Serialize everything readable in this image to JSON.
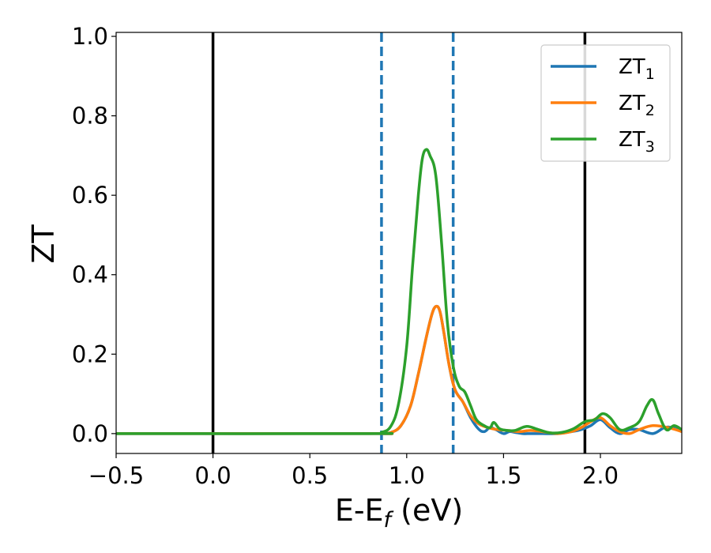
{
  "chart_data": {
    "type": "line",
    "xlabel": "E-E",
    "xlabel_subscript": "f",
    "xlabel_unit": " (eV)",
    "ylabel": "ZT",
    "xlim": [
      -0.5,
      2.42
    ],
    "ylim": [
      -0.05,
      1.01
    ],
    "xticks": [
      -0.5,
      0.0,
      0.5,
      1.0,
      1.5,
      2.0
    ],
    "xtick_labels": [
      "−0.5",
      "0.0",
      "0.5",
      "1.0",
      "1.5",
      "2.0"
    ],
    "yticks": [
      0.0,
      0.2,
      0.4,
      0.6,
      0.8,
      1.0
    ],
    "ytick_labels": [
      "0.0",
      "0.2",
      "0.4",
      "0.6",
      "0.8",
      "1.0"
    ],
    "grid": false,
    "legend_position": "top-right",
    "vlines": [
      {
        "x": 0.0,
        "style": "solid",
        "color": "#000000"
      },
      {
        "x": 1.92,
        "style": "solid",
        "color": "#000000"
      },
      {
        "x": 0.87,
        "style": "dashed",
        "color": "#1f77b4"
      },
      {
        "x": 1.24,
        "style": "dashed",
        "color": "#1f77b4"
      }
    ],
    "series": [
      {
        "name": "ZT",
        "name_subscript": "1",
        "color": "#1f77b4",
        "x": [
          -0.5,
          0.8,
          0.87,
          0.92,
          0.97,
          1.02,
          1.06,
          1.1,
          1.13,
          1.15,
          1.17,
          1.19,
          1.22,
          1.25,
          1.29,
          1.33,
          1.37,
          1.4,
          1.43,
          1.46,
          1.5,
          1.53,
          1.56,
          1.6,
          1.64,
          1.7,
          1.78,
          1.85,
          1.9,
          1.95,
          2.0,
          2.05,
          2.1,
          2.15,
          2.2,
          2.27,
          2.33,
          2.37,
          2.42
        ],
        "y": [
          0.0,
          0.0,
          0.0,
          0.003,
          0.02,
          0.07,
          0.15,
          0.24,
          0.3,
          0.32,
          0.31,
          0.26,
          0.17,
          0.11,
          0.08,
          0.04,
          0.012,
          0.005,
          0.015,
          0.01,
          0.0,
          0.005,
          0.003,
          0.0,
          0.0,
          0.0,
          0.0,
          0.005,
          0.01,
          0.02,
          0.035,
          0.015,
          0.0,
          0.01,
          0.01,
          0.0,
          0.015,
          0.015,
          0.005
        ]
      },
      {
        "name": "ZT",
        "name_subscript": "2",
        "color": "#ff7f0e",
        "x": [
          -0.5,
          0.8,
          0.87,
          0.92,
          0.97,
          1.02,
          1.06,
          1.1,
          1.13,
          1.15,
          1.17,
          1.19,
          1.22,
          1.25,
          1.29,
          1.33,
          1.37,
          1.42,
          1.47,
          1.52,
          1.58,
          1.64,
          1.7,
          1.78,
          1.85,
          1.9,
          1.95,
          2.0,
          2.05,
          2.1,
          2.15,
          2.2,
          2.27,
          2.35,
          2.42
        ],
        "y": [
          0.0,
          0.0,
          0.0,
          0.003,
          0.02,
          0.07,
          0.15,
          0.24,
          0.3,
          0.32,
          0.31,
          0.26,
          0.17,
          0.11,
          0.08,
          0.045,
          0.025,
          0.015,
          0.01,
          0.008,
          0.005,
          0.008,
          0.005,
          0.0,
          0.005,
          0.015,
          0.03,
          0.04,
          0.02,
          0.005,
          0.0,
          0.01,
          0.02,
          0.015,
          0.005
        ]
      },
      {
        "name": "ZT",
        "name_subscript": "3",
        "color": "#2ca02c",
        "x": [
          -0.5,
          0.8,
          0.87,
          0.92,
          0.96,
          1.0,
          1.03,
          1.06,
          1.08,
          1.1,
          1.12,
          1.15,
          1.18,
          1.21,
          1.24,
          1.27,
          1.3,
          1.33,
          1.36,
          1.4,
          1.43,
          1.45,
          1.48,
          1.52,
          1.56,
          1.62,
          1.68,
          1.74,
          1.8,
          1.86,
          1.92,
          1.97,
          2.01,
          2.05,
          2.1,
          2.15,
          2.2,
          2.24,
          2.27,
          2.3,
          2.34,
          2.38,
          2.42
        ],
        "y": [
          0.0,
          0.0,
          0.003,
          0.02,
          0.08,
          0.22,
          0.42,
          0.6,
          0.69,
          0.715,
          0.7,
          0.65,
          0.48,
          0.28,
          0.17,
          0.12,
          0.105,
          0.07,
          0.035,
          0.02,
          0.015,
          0.028,
          0.012,
          0.008,
          0.008,
          0.018,
          0.01,
          0.002,
          0.003,
          0.012,
          0.03,
          0.035,
          0.05,
          0.04,
          0.01,
          0.015,
          0.03,
          0.07,
          0.085,
          0.05,
          0.01,
          0.02,
          0.01
        ]
      }
    ]
  }
}
